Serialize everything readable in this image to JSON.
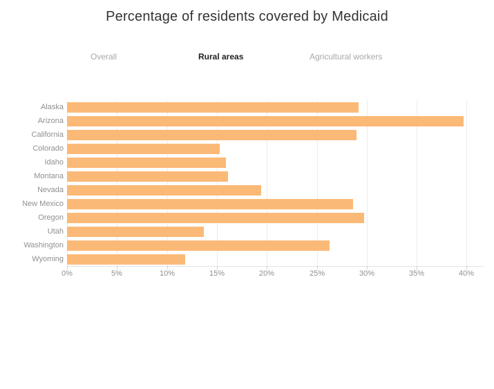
{
  "title": "Percentage of residents covered by Medicaid",
  "tabs": [
    {
      "label": "Overall",
      "active": false
    },
    {
      "label": "Rural areas",
      "active": true
    },
    {
      "label": "Agricultural workers",
      "active": false
    }
  ],
  "chart_data": {
    "type": "bar",
    "orientation": "horizontal",
    "title": "Percentage of residents covered by Medicaid",
    "categories": [
      "Alaska",
      "Arizona",
      "California",
      "Colorado",
      "Idaho",
      "Montana",
      "Nevada",
      "New Mexico",
      "Oregon",
      "Utah",
      "Washington",
      "Wyoming"
    ],
    "values": [
      29.2,
      39.7,
      29.0,
      15.3,
      15.9,
      16.1,
      19.4,
      28.6,
      29.7,
      13.7,
      26.3,
      11.8
    ],
    "unit": "%",
    "xlabel": "",
    "ylabel": "",
    "xlim": [
      0,
      41.7
    ],
    "tick_values": [
      0,
      5,
      10,
      15,
      20,
      25,
      30,
      35,
      40
    ],
    "tick_labels": [
      "0%",
      "5%",
      "10%",
      "15%",
      "20%",
      "25%",
      "30%",
      "35%",
      "40%"
    ],
    "grid": true,
    "legend": false
  },
  "colors": {
    "bar": "#FBB977",
    "title_text": "#333333",
    "axis_text": "#8f8f8f",
    "gridline": "#ececec",
    "active_tab": "#1f1f1f",
    "inactive_tab": "#a8a8a8"
  }
}
